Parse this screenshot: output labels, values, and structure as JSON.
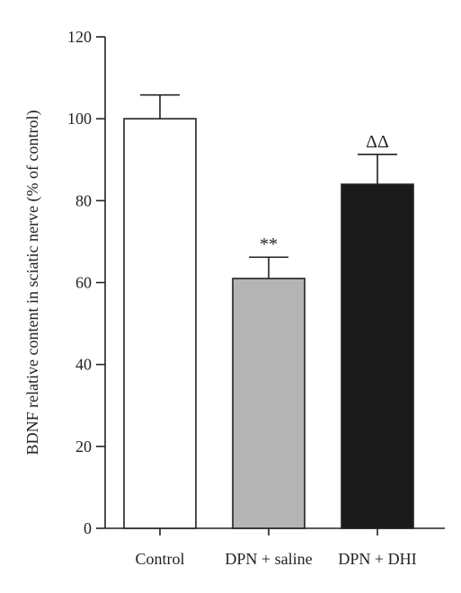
{
  "chart_data": {
    "type": "bar",
    "title": "",
    "xlabel": "",
    "ylabel": "BDNF relative content in sciatic nerve (% of control)",
    "ylim": [
      0,
      120
    ],
    "yticks": [
      0,
      20,
      40,
      60,
      80,
      100,
      120
    ],
    "grid": false,
    "categories": [
      "Control",
      "DPN + saline",
      "DPN + DHI"
    ],
    "values": [
      100,
      61,
      84
    ],
    "errors": [
      5.8,
      5.2,
      7.3
    ],
    "significance": [
      "",
      "**",
      "ΔΔ"
    ],
    "bar_colors": [
      "#ffffff",
      "#b4b4b4",
      "#1a1a1a"
    ]
  }
}
